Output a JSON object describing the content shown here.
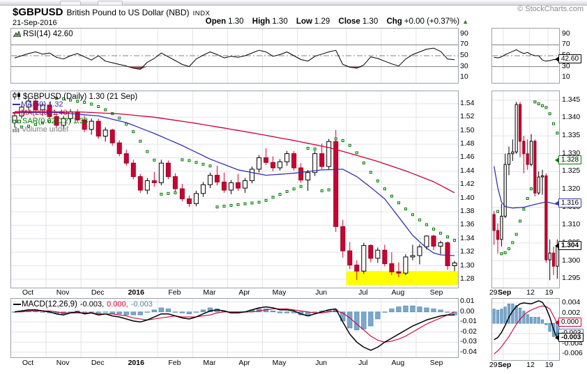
{
  "header": {
    "symbol": "$GBPUSD",
    "name": "British Pound to US Dollar (NBD)",
    "exchange": "INDX",
    "date": "21-Sep-2016",
    "copyright": "© StockCharts.com",
    "quote": {
      "open_label": "Open",
      "open": "1.30",
      "high_label": "High",
      "high": "1.30",
      "low_label": "Low",
      "low": "1.29",
      "close_label": "Close",
      "close": "1.30",
      "chg_label": "Chg",
      "chg": "+0.00 (+0.37%)",
      "arrow": "▲"
    }
  },
  "colors": {
    "down": "#cc0033",
    "down-stroke": "#99001f",
    "up": "#ffffff",
    "ma50": "#3333aa",
    "ma200": "#cc0033",
    "sar": "#007700",
    "sar-fill": "#eafaea",
    "hist": "#79a8cc",
    "hist-stroke": "#4d7ea8",
    "grid": "#e3e3ea",
    "levels": "#808080",
    "rsi-fill": "#a05050",
    "highlight": "#ffff00",
    "line": "#000000",
    "signal": "#cc0033"
  },
  "chart_data": [
    {
      "id": "rsi-main",
      "type": "line",
      "label": "RSI(14) 42.60",
      "last": 42.6,
      "ylim": [
        100,
        0
      ],
      "levels": [
        70,
        50,
        30
      ],
      "fill_below": 30,
      "ytick_labels": [
        "90",
        "70",
        "50",
        "30",
        "10"
      ],
      "ytick_values": [
        90,
        70,
        50,
        30,
        10
      ],
      "values": [
        46,
        50,
        54,
        57,
        53,
        55,
        47,
        44,
        50,
        54,
        48,
        42,
        50,
        40,
        37,
        34,
        31,
        27,
        25,
        38,
        45,
        55,
        48,
        41,
        34,
        30,
        44,
        51,
        57,
        52,
        46,
        49,
        47,
        50,
        55,
        60,
        57,
        49,
        52,
        57,
        50,
        43,
        40,
        49,
        53,
        57,
        60,
        34,
        29,
        27,
        33,
        48,
        45,
        40,
        35,
        31,
        44,
        52,
        57,
        62,
        64,
        58,
        44,
        42.6
      ]
    },
    {
      "id": "price-main",
      "type": "candlestick",
      "legend": {
        "title": "$GBPUSD (Daily) 1.30 (21 Sep)",
        "ma50": "MA(50) 1.32",
        "ma200": "MA(200) 1.40",
        "sar": "SAR(0.02,0.2) 1.33",
        "volume": "Volume undef"
      },
      "ylim": [
        1.5585,
        1.2675
      ],
      "ytick_labels": [
        "1.54",
        "1.52",
        "1.50",
        "1.48",
        "1.46",
        "1.44",
        "1.42",
        "1.40",
        "1.38",
        "1.36",
        "1.34",
        "1.32",
        "1.30",
        "1.28"
      ],
      "ytick_values": [
        1.54,
        1.52,
        1.5,
        1.48,
        1.46,
        1.44,
        1.42,
        1.4,
        1.38,
        1.36,
        1.34,
        1.32,
        1.3,
        1.28
      ],
      "months": [
        "Oct",
        "Nov",
        "Dec",
        "2016",
        "Feb",
        "Mar",
        "Apr",
        "May",
        "Jun",
        "Jul",
        "Aug",
        "Sep"
      ],
      "month_starts": [
        0,
        5,
        10,
        15,
        21,
        26,
        31,
        36,
        41,
        48,
        53,
        58
      ],
      "sar_params": [
        0.02,
        0.2
      ],
      "highlight": {
        "from_index": 48,
        "top": 1.292,
        "bottom": 1.2715
      },
      "candles": [
        [
          1.512,
          1.526,
          1.505,
          1.522
        ],
        [
          1.522,
          1.538,
          1.518,
          1.535
        ],
        [
          1.535,
          1.548,
          1.53,
          1.544
        ],
        [
          1.544,
          1.548,
          1.526,
          1.531
        ],
        [
          1.531,
          1.541,
          1.522,
          1.538
        ],
        [
          1.538,
          1.542,
          1.517,
          1.521
        ],
        [
          1.521,
          1.528,
          1.504,
          1.508
        ],
        [
          1.508,
          1.522,
          1.503,
          1.518
        ],
        [
          1.518,
          1.532,
          1.512,
          1.528
        ],
        [
          1.528,
          1.532,
          1.512,
          1.516
        ],
        [
          1.516,
          1.522,
          1.498,
          1.502
        ],
        [
          1.502,
          1.518,
          1.494,
          1.514
        ],
        [
          1.514,
          1.518,
          1.488,
          1.492
        ],
        [
          1.492,
          1.505,
          1.484,
          1.501
        ],
        [
          1.501,
          1.503,
          1.478,
          1.482
        ],
        [
          1.482,
          1.486,
          1.462,
          1.466
        ],
        [
          1.466,
          1.472,
          1.448,
          1.452
        ],
        [
          1.452,
          1.457,
          1.428,
          1.432
        ],
        [
          1.432,
          1.436,
          1.408,
          1.412
        ],
        [
          1.412,
          1.43,
          1.406,
          1.426
        ],
        [
          1.426,
          1.439,
          1.417,
          1.423
        ],
        [
          1.423,
          1.457,
          1.419,
          1.452
        ],
        [
          1.452,
          1.456,
          1.428,
          1.432
        ],
        [
          1.432,
          1.437,
          1.41,
          1.414
        ],
        [
          1.414,
          1.421,
          1.395,
          1.399
        ],
        [
          1.399,
          1.404,
          1.387,
          1.392
        ],
        [
          1.392,
          1.411,
          1.388,
          1.407
        ],
        [
          1.407,
          1.424,
          1.402,
          1.42
        ],
        [
          1.42,
          1.438,
          1.415,
          1.434
        ],
        [
          1.434,
          1.448,
          1.419,
          1.424
        ],
        [
          1.424,
          1.438,
          1.408,
          1.412
        ],
        [
          1.412,
          1.427,
          1.406,
          1.423
        ],
        [
          1.423,
          1.436,
          1.411,
          1.415
        ],
        [
          1.415,
          1.43,
          1.408,
          1.426
        ],
        [
          1.426,
          1.447,
          1.422,
          1.443
        ],
        [
          1.443,
          1.464,
          1.438,
          1.46
        ],
        [
          1.46,
          1.474,
          1.449,
          1.453
        ],
        [
          1.453,
          1.462,
          1.44,
          1.445
        ],
        [
          1.445,
          1.458,
          1.441,
          1.454
        ],
        [
          1.454,
          1.47,
          1.448,
          1.466
        ],
        [
          1.466,
          1.47,
          1.441,
          1.445
        ],
        [
          1.445,
          1.452,
          1.423,
          1.427
        ],
        [
          1.427,
          1.442,
          1.411,
          1.438
        ],
        [
          1.438,
          1.47,
          1.433,
          1.466
        ],
        [
          1.466,
          1.481,
          1.443,
          1.447
        ],
        [
          1.447,
          1.488,
          1.443,
          1.484
        ],
        [
          1.484,
          1.501,
          1.35,
          1.358
        ],
        [
          1.358,
          1.368,
          1.312,
          1.322
        ],
        [
          1.322,
          1.335,
          1.295,
          1.301
        ],
        [
          1.301,
          1.308,
          1.279,
          1.292
        ],
        [
          1.292,
          1.334,
          1.288,
          1.33
        ],
        [
          1.33,
          1.332,
          1.305,
          1.311
        ],
        [
          1.311,
          1.327,
          1.304,
          1.323
        ],
        [
          1.323,
          1.331,
          1.299,
          1.303
        ],
        [
          1.303,
          1.32,
          1.286,
          1.291
        ],
        [
          1.291,
          1.305,
          1.283,
          1.289
        ],
        [
          1.289,
          1.317,
          1.286,
          1.313
        ],
        [
          1.313,
          1.331,
          1.308,
          1.315
        ],
        [
          1.315,
          1.332,
          1.302,
          1.328
        ],
        [
          1.328,
          1.345,
          1.324,
          1.344
        ],
        [
          1.344,
          1.346,
          1.323,
          1.329
        ],
        [
          1.329,
          1.337,
          1.317,
          1.334
        ],
        [
          1.334,
          1.336,
          1.294,
          1.3
        ],
        [
          1.3,
          1.307,
          1.292,
          1.304
        ]
      ],
      "ma50_anchors": [
        [
          0,
          1.527
        ],
        [
          6,
          1.527
        ],
        [
          12,
          1.522
        ],
        [
          16,
          1.512
        ],
        [
          20,
          1.496
        ],
        [
          24,
          1.478
        ],
        [
          28,
          1.458
        ],
        [
          32,
          1.442
        ],
        [
          36,
          1.434
        ],
        [
          40,
          1.437
        ],
        [
          44,
          1.442
        ],
        [
          47,
          1.443
        ],
        [
          49,
          1.432
        ],
        [
          51,
          1.416
        ],
        [
          53,
          1.399
        ],
        [
          55,
          1.372
        ],
        [
          57,
          1.345
        ],
        [
          59,
          1.326
        ],
        [
          60,
          1.319
        ],
        [
          61,
          1.316
        ],
        [
          63,
          1.315
        ]
      ],
      "ma200_anchors": [
        [
          0,
          1.5285
        ],
        [
          10,
          1.5275
        ],
        [
          15,
          1.525
        ],
        [
          20,
          1.52
        ],
        [
          25,
          1.5125
        ],
        [
          30,
          1.504
        ],
        [
          35,
          1.495
        ],
        [
          40,
          1.4855
        ],
        [
          45,
          1.475
        ],
        [
          48,
          1.4665
        ],
        [
          52,
          1.4545
        ],
        [
          56,
          1.4405
        ],
        [
          60,
          1.4245
        ],
        [
          63,
          1.408
        ]
      ]
    },
    {
      "id": "macd-main",
      "type": "macd",
      "legend": {
        "name": "MACD(12,26,9)",
        "macd_value": "-0.003,",
        "signal_value": "0.000,",
        "hist_value": "-0.003"
      },
      "ylim": [
        0.013,
        -0.045
      ],
      "ytick_labels": [
        "0.01",
        "0.00",
        "-0.01",
        "-0.02",
        "-0.03",
        "-0.04"
      ],
      "ytick_values": [
        0.01,
        0.0,
        -0.01,
        -0.02,
        -0.03,
        -0.04
      ],
      "macd": [
        0.0,
        0.001,
        0.002,
        0.002,
        0.001,
        0.0,
        -0.002,
        -0.003,
        -0.001,
        0.0,
        -0.002,
        -0.001,
        -0.003,
        -0.002,
        -0.004,
        -0.005,
        -0.007,
        -0.009,
        -0.01,
        -0.008,
        -0.005,
        -0.002,
        -0.002,
        -0.004,
        -0.006,
        -0.007,
        -0.005,
        -0.002,
        0.001,
        0.002,
        0.001,
        -0.001,
        -0.001,
        0.0,
        0.002,
        0.004,
        0.005,
        0.004,
        0.002,
        0.002,
        0.001,
        -0.002,
        -0.004,
        -0.002,
        0.0,
        0.002,
        0.003,
        -0.01,
        -0.022,
        -0.03,
        -0.035,
        -0.038,
        -0.035,
        -0.03,
        -0.026,
        -0.022,
        -0.018,
        -0.014,
        -0.011,
        -0.008,
        -0.006,
        -0.004,
        -0.003,
        -0.003
      ],
      "signal": [
        0.0,
        0.0,
        0.001,
        0.001,
        0.001,
        0.001,
        0.0,
        -0.001,
        -0.001,
        -0.001,
        -0.001,
        -0.001,
        -0.002,
        -0.002,
        -0.002,
        -0.003,
        -0.004,
        -0.006,
        -0.007,
        -0.008,
        -0.007,
        -0.006,
        -0.005,
        -0.004,
        -0.005,
        -0.005,
        -0.005,
        -0.004,
        -0.003,
        -0.001,
        0.0,
        0.0,
        0.0,
        0.0,
        0.0,
        0.001,
        0.002,
        0.003,
        0.003,
        0.003,
        0.002,
        0.001,
        0.0,
        -0.001,
        -0.001,
        0.0,
        0.001,
        -0.001,
        -0.006,
        -0.012,
        -0.018,
        -0.024,
        -0.028,
        -0.03,
        -0.029,
        -0.027,
        -0.024,
        -0.02,
        -0.016,
        -0.012,
        -0.009,
        -0.006,
        -0.003,
        0.0
      ]
    },
    {
      "id": "rsi-mini",
      "type": "line",
      "last": 42.6,
      "ylim": [
        100,
        0
      ],
      "levels": [
        70,
        50,
        30
      ],
      "fill_below": 30,
      "ytick_labels": [
        "90",
        "70",
        "50",
        "30",
        "10"
      ],
      "ytick_values": [
        90,
        70,
        50,
        30,
        10
      ],
      "vlines": [
        3,
        10,
        15
      ],
      "values": [
        47,
        46,
        48,
        52,
        55,
        58,
        61,
        57,
        54,
        56,
        52,
        50,
        50,
        42,
        40,
        41,
        43,
        42.6
      ],
      "tags": [
        {
          "label": "42.60",
          "value": 42.6,
          "color": "#000000",
          "bold": false
        }
      ]
    },
    {
      "id": "price-mini",
      "type": "candlestick",
      "ylim": [
        1.3475,
        1.2925
      ],
      "ytick_labels": [
        "1.345",
        "1.340",
        "1.335",
        "1.330",
        "1.325",
        "1.320",
        "1.315",
        "1.310",
        "1.305",
        "1.300",
        "1.295"
      ],
      "ytick_values": [
        1.345,
        1.34,
        1.335,
        1.33,
        1.325,
        1.32,
        1.315,
        1.31,
        1.305,
        1.3,
        1.295
      ],
      "vlines": [
        3,
        10,
        15
      ],
      "xticks": [
        {
          "label": "29",
          "i": 0
        },
        {
          "label": "Sep",
          "i": 3,
          "bold": true
        },
        {
          "label": "12",
          "i": 10
        },
        {
          "label": "19",
          "i": 15
        }
      ],
      "sar_params": [
        0.02,
        0.2
      ],
      "candles": [
        [
          1.313,
          1.314,
          1.3045,
          1.3085
        ],
        [
          1.3085,
          1.3105,
          1.302,
          1.306
        ],
        [
          1.306,
          1.316,
          1.304,
          1.3125
        ],
        [
          1.3125,
          1.33,
          1.312,
          1.327
        ],
        [
          1.327,
          1.332,
          1.324,
          1.33
        ],
        [
          1.33,
          1.334,
          1.328,
          1.3305
        ],
        [
          1.3305,
          1.3445,
          1.33,
          1.3438
        ],
        [
          1.3438,
          1.3445,
          1.329,
          1.3335
        ],
        [
          1.3335,
          1.335,
          1.3245,
          1.33
        ],
        [
          1.33,
          1.334,
          1.3255,
          1.327
        ],
        [
          1.327,
          1.3355,
          1.3265,
          1.3335
        ],
        [
          1.3335,
          1.334,
          1.318,
          1.319
        ],
        [
          1.319,
          1.325,
          1.3185,
          1.3235
        ],
        [
          1.3235,
          1.3255,
          1.3185,
          1.3238
        ],
        [
          1.3238,
          1.3245,
          1.2995,
          1.3003
        ],
        [
          1.3003,
          1.306,
          1.2946,
          1.3022
        ],
        [
          1.3022,
          1.304,
          1.296,
          1.2985
        ],
        [
          1.2985,
          1.306,
          1.295,
          1.3043
        ]
      ],
      "ma50_anchors": [
        [
          0,
          1.3265
        ],
        [
          1,
          1.3205
        ],
        [
          2,
          1.3165
        ],
        [
          3,
          1.3152
        ],
        [
          5,
          1.3148
        ],
        [
          8,
          1.315
        ],
        [
          11,
          1.3158
        ],
        [
          14,
          1.3165
        ],
        [
          15,
          1.3163
        ],
        [
          17,
          1.3158
        ]
      ],
      "tags": [
        {
          "label": "1.328",
          "value": 1.328,
          "color": "#007700",
          "bold": false
        },
        {
          "label": "1.316",
          "value": 1.316,
          "color": "#3333aa",
          "bold": false
        },
        {
          "label": "1.304",
          "value": 1.304,
          "color": "#000000",
          "bold": true
        }
      ]
    },
    {
      "id": "macd-mini",
      "type": "macd",
      "ylim": [
        0.0048,
        -0.0072
      ],
      "ytick_labels": [
        "0.004",
        "0.002",
        "0.000",
        "-0.002",
        "-0.004",
        "-0.006"
      ],
      "ytick_values": [
        0.004,
        0.002,
        0.0,
        -0.002,
        -0.004,
        -0.006
      ],
      "vlines": [
        3,
        10,
        15
      ],
      "xticks": [
        {
          "label": "29",
          "i": 0
        },
        {
          "label": "Sep",
          "i": 3,
          "bold": true
        },
        {
          "label": "12",
          "i": 10
        },
        {
          "label": "19",
          "i": 15
        }
      ],
      "macd": [
        -0.0032,
        -0.0028,
        -0.0018,
        -0.0004,
        0.0012,
        0.0024,
        0.0033,
        0.0038,
        0.004,
        0.0039,
        0.0038,
        0.0041,
        0.0044,
        0.0041,
        0.003,
        0.0012,
        -0.0012,
        -0.003
      ],
      "signal": [
        -0.006,
        -0.0054,
        -0.0046,
        -0.0036,
        -0.0026,
        -0.0014,
        -0.0002,
        0.0008,
        0.0016,
        0.0022,
        0.0026,
        0.0029,
        0.0032,
        0.0034,
        0.0033,
        0.0028,
        0.0014,
        0.0
      ],
      "tags": [
        {
          "label": "-0.003",
          "value": -0.0022,
          "color": "#4d7ea8",
          "bold": false
        },
        {
          "label": "0.000",
          "value": 0.0,
          "color": "#cc0033",
          "bold": false
        },
        {
          "label": "-0.003",
          "value": -0.003,
          "color": "#000000",
          "bold": true
        }
      ]
    }
  ]
}
